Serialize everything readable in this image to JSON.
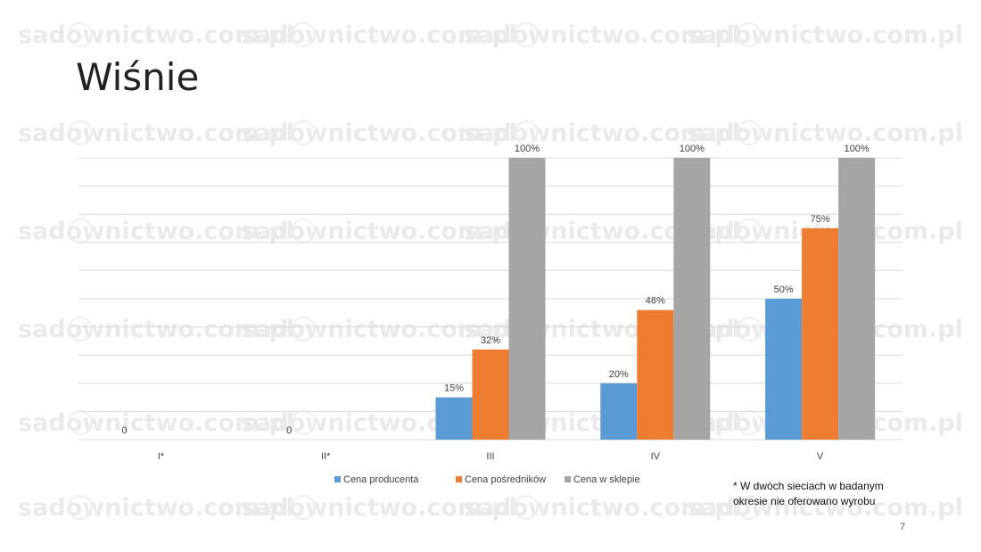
{
  "slide": {
    "title": "Wiśnie",
    "footnote_line1": "* W dwóch sieciach w badanym",
    "footnote_line2": "okresie nie oferowano wyrobu",
    "page_number": "7",
    "watermark_text": "sadownictwo.com.pl"
  },
  "chart_data": {
    "type": "bar",
    "categories": [
      "I*",
      "II*",
      "III",
      "IV",
      "V"
    ],
    "series": [
      {
        "name": "Cena producenta",
        "color": "#5B9BD5",
        "values": [
          0,
          0,
          15,
          20,
          50
        ],
        "labels": [
          "0",
          "0",
          "15%",
          "20%",
          "50%"
        ]
      },
      {
        "name": "Cena pośredników",
        "color": "#ED7D31",
        "values": [
          null,
          null,
          32,
          46,
          75
        ],
        "labels": [
          "",
          "",
          "32%",
          "46%",
          "75%"
        ]
      },
      {
        "name": "Cena w sklepie",
        "color": "#A5A5A5",
        "values": [
          null,
          null,
          100,
          100,
          100
        ],
        "labels": [
          "",
          "",
          "100%",
          "100%",
          "100%"
        ]
      }
    ],
    "ylim": [
      0,
      100
    ],
    "grid": true,
    "legend_position": "bottom"
  }
}
